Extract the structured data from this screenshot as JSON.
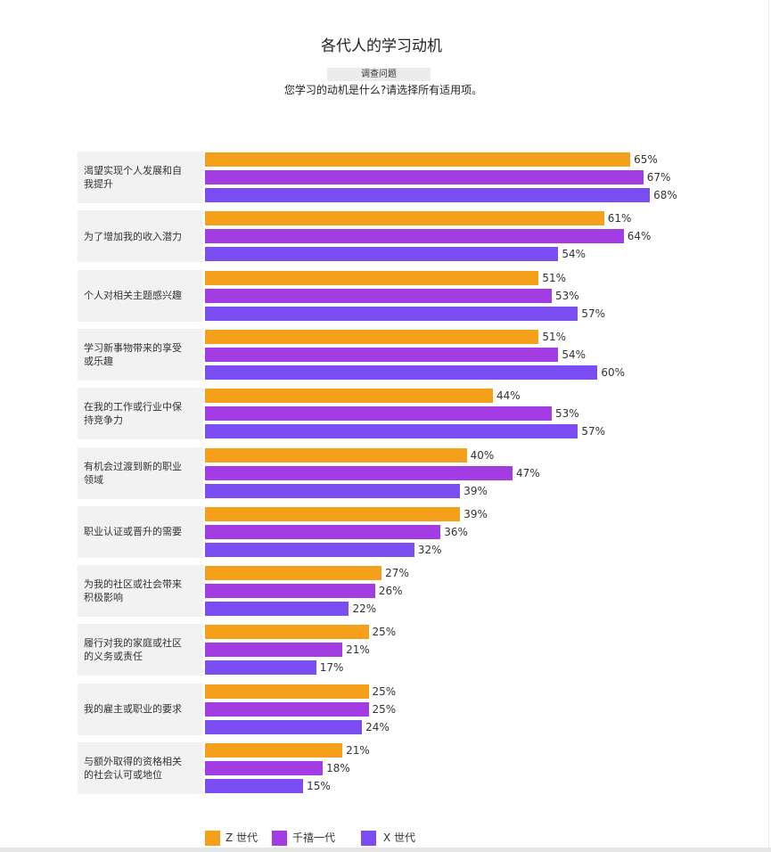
{
  "chart_data": {
    "type": "bar",
    "orientation": "horizontal",
    "title": "各代人的学习动机",
    "question_tag": "调查问题",
    "question": "您学习的动机是什么?请选择所有适用项。",
    "value_suffix": "%",
    "grid": false,
    "legend": "bottom",
    "categories": [
      "渴望实现个人发展和自我提升",
      "为了增加我的收入潜力",
      "个人对相关主题感兴趣",
      "学习新事物带来的享受或乐趣",
      "在我的工作或行业中保持竞争力",
      "有机会过渡到新的职业领域",
      "职业认证或晋升的需要",
      "为我的社区或社会带来积极影响",
      "履行对我的家庭或社区的义务或责任",
      "我的雇主或职业的要求",
      "与额外取得的资格相关的社会认可或地位"
    ],
    "series": [
      {
        "name": "Z 世代",
        "color": "#F5A01A",
        "values": [
          65,
          61,
          51,
          51,
          44,
          40,
          39,
          27,
          25,
          25,
          21
        ]
      },
      {
        "name": "千禧一代",
        "color": "#A43CE3",
        "values": [
          67,
          64,
          53,
          54,
          53,
          47,
          36,
          26,
          21,
          25,
          18
        ]
      },
      {
        "name": "X 世代",
        "color": "#7B4EF3",
        "values": [
          68,
          54,
          57,
          60,
          57,
          39,
          32,
          22,
          17,
          24,
          15
        ]
      }
    ]
  }
}
